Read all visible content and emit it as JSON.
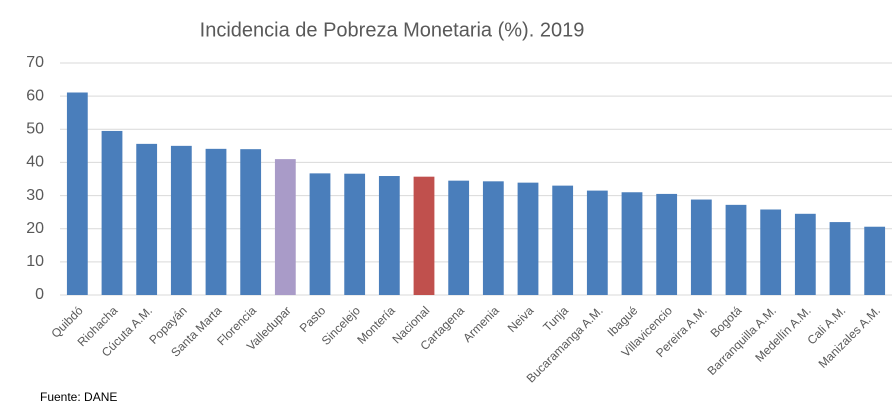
{
  "chart_data": {
    "type": "bar",
    "title": "Incidencia de Pobreza Monetaria (%). 2019",
    "categories": [
      "Quibdó",
      "Riohacha",
      "Cúcuta A.M.",
      "Popayán",
      "Santa Marta",
      "Florencia",
      "Valledupar",
      "Pasto",
      "Sincelejo",
      "Montería",
      "Nacional",
      "Cartagena",
      "Armenia",
      "Neiva",
      "Tunja",
      "Bucaramanga A.M.",
      "Ibagué",
      "Villavicencio",
      "Pereira A.M.",
      "Bogotá",
      "Barranquilla A.M.",
      "Medellín A.M.",
      "Cali A.M.",
      "Manizales A.M."
    ],
    "values": [
      61.1,
      49.5,
      45.6,
      45.0,
      44.1,
      44.0,
      41.0,
      36.7,
      36.6,
      35.9,
      35.7,
      34.5,
      34.3,
      33.9,
      33.0,
      31.5,
      31.0,
      30.5,
      28.8,
      27.2,
      25.8,
      24.5,
      22.0,
      20.6
    ],
    "colors": [
      "#4a7ebb",
      "#4a7ebb",
      "#4a7ebb",
      "#4a7ebb",
      "#4a7ebb",
      "#4a7ebb",
      "#a99bc8",
      "#4a7ebb",
      "#4a7ebb",
      "#4a7ebb",
      "#c0504d",
      "#4a7ebb",
      "#4a7ebb",
      "#4a7ebb",
      "#4a7ebb",
      "#4a7ebb",
      "#4a7ebb",
      "#4a7ebb",
      "#4a7ebb",
      "#4a7ebb",
      "#4a7ebb",
      "#4a7ebb",
      "#4a7ebb",
      "#4a7ebb"
    ],
    "ylim": [
      0,
      70
    ],
    "yticks": [
      0,
      10,
      20,
      30,
      40,
      50,
      60,
      70
    ],
    "grid": true,
    "source": "Fuente: DANE"
  }
}
